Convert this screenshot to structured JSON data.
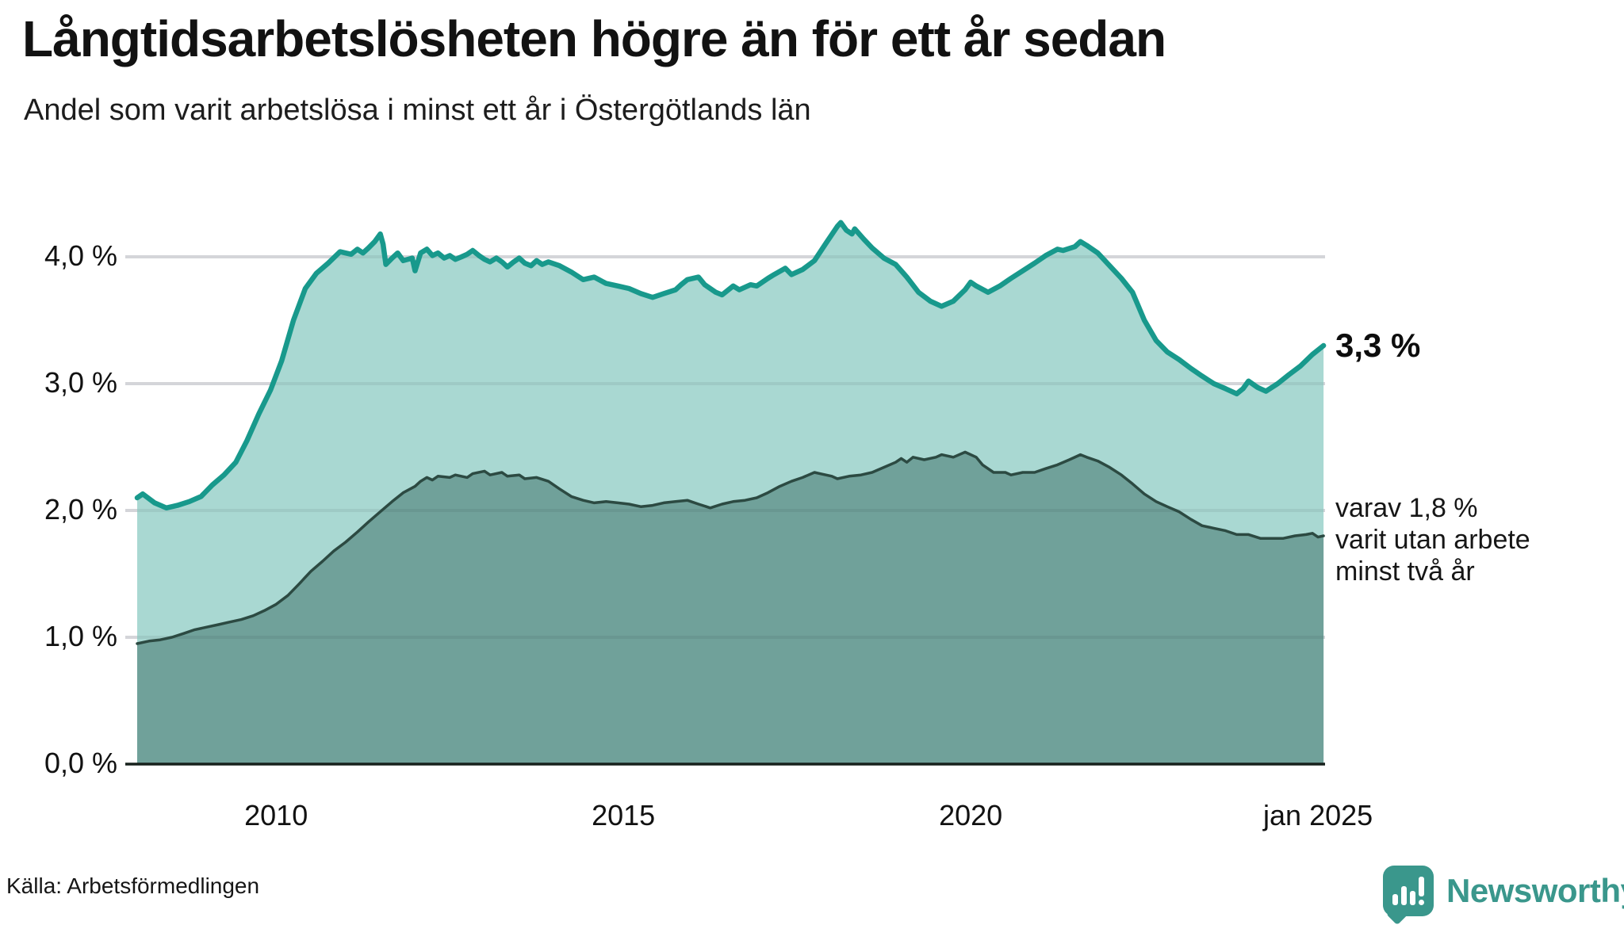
{
  "header": {
    "title": "Långtidsarbetslösheten högre än för ett år sedan",
    "subtitle": "Andel som varit arbetslösa i minst ett år i Östergötlands län"
  },
  "annotations": {
    "end_value_top": "3,3 %",
    "end_note_lines": [
      "varav 1,8 %",
      "varit utan arbete",
      "minst två år"
    ]
  },
  "footer": {
    "source": "Källa: Arbetsförmedlingen",
    "brand": "Newsworthy"
  },
  "colors": {
    "line_total": "#18998c",
    "fill_total": "#a9d8d2",
    "line_two_year": "#2c4a42",
    "fill_two_year": "#70a19a",
    "gridline": "#e3e3e8",
    "axis": "#17211c",
    "brand": "#3a978c"
  },
  "chart_data": {
    "type": "area",
    "title": "Långtidsarbetslösheten högre än för ett år sedan",
    "subtitle": "Andel som varit arbetslösa i minst ett år i Östergötlands län",
    "unit": "percent",
    "x_domain": [
      2008.0,
      2025.09
    ],
    "y_domain": [
      0,
      4.45
    ],
    "grid": true,
    "yticks": [
      {
        "label": "4,0 %",
        "value": 4
      },
      {
        "label": "3,0 %",
        "value": 3
      },
      {
        "label": "2,0 %",
        "value": 2
      },
      {
        "label": "1,0 %",
        "value": 1
      },
      {
        "label": "0,0 %",
        "value": 0
      }
    ],
    "xticks": [
      {
        "label": "2010",
        "value": 2010.0
      },
      {
        "label": "2015",
        "value": 2015.0
      },
      {
        "label": "2020",
        "value": 2020.0
      },
      {
        "label": "jan 2025",
        "value": 2025.0
      }
    ],
    "series": [
      {
        "name": "arbetslösa minst ett år",
        "end_label": "3,3 %",
        "end_value": 3.3,
        "points": [
          [
            2008.0,
            2.1
          ],
          [
            2008.08,
            2.13
          ],
          [
            2008.25,
            2.06
          ],
          [
            2008.42,
            2.02
          ],
          [
            2008.58,
            2.04
          ],
          [
            2008.75,
            2.07
          ],
          [
            2008.92,
            2.11
          ],
          [
            2009.08,
            2.2
          ],
          [
            2009.25,
            2.28
          ],
          [
            2009.42,
            2.38
          ],
          [
            2009.58,
            2.55
          ],
          [
            2009.75,
            2.76
          ],
          [
            2009.92,
            2.95
          ],
          [
            2010.08,
            3.18
          ],
          [
            2010.25,
            3.5
          ],
          [
            2010.42,
            3.75
          ],
          [
            2010.58,
            3.87
          ],
          [
            2010.75,
            3.95
          ],
          [
            2010.92,
            4.04
          ],
          [
            2011.08,
            4.02
          ],
          [
            2011.17,
            4.06
          ],
          [
            2011.25,
            4.03
          ],
          [
            2011.33,
            4.07
          ],
          [
            2011.42,
            4.12
          ],
          [
            2011.5,
            4.18
          ],
          [
            2011.54,
            4.1
          ],
          [
            2011.58,
            3.94
          ],
          [
            2011.67,
            3.99
          ],
          [
            2011.75,
            4.03
          ],
          [
            2011.83,
            3.97
          ],
          [
            2011.96,
            3.99
          ],
          [
            2012.0,
            3.89
          ],
          [
            2012.08,
            4.03
          ],
          [
            2012.17,
            4.06
          ],
          [
            2012.25,
            4.01
          ],
          [
            2012.33,
            4.03
          ],
          [
            2012.42,
            3.99
          ],
          [
            2012.5,
            4.01
          ],
          [
            2012.58,
            3.98
          ],
          [
            2012.67,
            4.0
          ],
          [
            2012.75,
            4.02
          ],
          [
            2012.83,
            4.05
          ],
          [
            2012.92,
            4.01
          ],
          [
            2013.0,
            3.98
          ],
          [
            2013.08,
            3.96
          ],
          [
            2013.17,
            3.99
          ],
          [
            2013.25,
            3.96
          ],
          [
            2013.33,
            3.92
          ],
          [
            2013.42,
            3.96
          ],
          [
            2013.5,
            3.99
          ],
          [
            2013.58,
            3.95
          ],
          [
            2013.67,
            3.93
          ],
          [
            2013.75,
            3.97
          ],
          [
            2013.83,
            3.94
          ],
          [
            2013.92,
            3.96
          ],
          [
            2014.08,
            3.93
          ],
          [
            2014.25,
            3.88
          ],
          [
            2014.42,
            3.82
          ],
          [
            2014.58,
            3.84
          ],
          [
            2014.75,
            3.79
          ],
          [
            2014.92,
            3.77
          ],
          [
            2015.08,
            3.75
          ],
          [
            2015.25,
            3.71
          ],
          [
            2015.42,
            3.68
          ],
          [
            2015.58,
            3.71
          ],
          [
            2015.75,
            3.74
          ],
          [
            2015.83,
            3.78
          ],
          [
            2015.92,
            3.82
          ],
          [
            2016.08,
            3.84
          ],
          [
            2016.17,
            3.78
          ],
          [
            2016.33,
            3.72
          ],
          [
            2016.42,
            3.7
          ],
          [
            2016.58,
            3.77
          ],
          [
            2016.67,
            3.74
          ],
          [
            2016.83,
            3.78
          ],
          [
            2016.92,
            3.77
          ],
          [
            2017.08,
            3.83
          ],
          [
            2017.17,
            3.86
          ],
          [
            2017.33,
            3.91
          ],
          [
            2017.42,
            3.86
          ],
          [
            2017.58,
            3.9
          ],
          [
            2017.75,
            3.97
          ],
          [
            2017.92,
            4.11
          ],
          [
            2018.08,
            4.24
          ],
          [
            2018.13,
            4.27
          ],
          [
            2018.21,
            4.21
          ],
          [
            2018.29,
            4.18
          ],
          [
            2018.33,
            4.22
          ],
          [
            2018.46,
            4.14
          ],
          [
            2018.58,
            4.07
          ],
          [
            2018.75,
            3.99
          ],
          [
            2018.92,
            3.94
          ],
          [
            2019.08,
            3.84
          ],
          [
            2019.25,
            3.72
          ],
          [
            2019.42,
            3.65
          ],
          [
            2019.58,
            3.61
          ],
          [
            2019.75,
            3.65
          ],
          [
            2019.92,
            3.74
          ],
          [
            2020.0,
            3.8
          ],
          [
            2020.08,
            3.77
          ],
          [
            2020.25,
            3.72
          ],
          [
            2020.42,
            3.77
          ],
          [
            2020.58,
            3.83
          ],
          [
            2020.75,
            3.89
          ],
          [
            2020.92,
            3.95
          ],
          [
            2021.08,
            4.01
          ],
          [
            2021.25,
            4.06
          ],
          [
            2021.33,
            4.05
          ],
          [
            2021.5,
            4.08
          ],
          [
            2021.58,
            4.12
          ],
          [
            2021.67,
            4.09
          ],
          [
            2021.83,
            4.03
          ],
          [
            2022.0,
            3.93
          ],
          [
            2022.17,
            3.83
          ],
          [
            2022.33,
            3.72
          ],
          [
            2022.5,
            3.5
          ],
          [
            2022.67,
            3.34
          ],
          [
            2022.83,
            3.25
          ],
          [
            2023.0,
            3.19
          ],
          [
            2023.17,
            3.12
          ],
          [
            2023.33,
            3.06
          ],
          [
            2023.5,
            3.0
          ],
          [
            2023.67,
            2.96
          ],
          [
            2023.83,
            2.92
          ],
          [
            2023.92,
            2.96
          ],
          [
            2024.0,
            3.02
          ],
          [
            2024.13,
            2.97
          ],
          [
            2024.25,
            2.94
          ],
          [
            2024.42,
            3.0
          ],
          [
            2024.58,
            3.07
          ],
          [
            2024.75,
            3.14
          ],
          [
            2024.92,
            3.23
          ],
          [
            2025.08,
            3.3
          ]
        ]
      },
      {
        "name": "varav utan arbete minst två år",
        "end_label": "varav 1,8 % varit utan arbete minst två år",
        "end_value": 1.8,
        "points": [
          [
            2008.0,
            0.95
          ],
          [
            2008.17,
            0.97
          ],
          [
            2008.33,
            0.98
          ],
          [
            2008.5,
            1.0
          ],
          [
            2008.67,
            1.03
          ],
          [
            2008.83,
            1.06
          ],
          [
            2009.0,
            1.08
          ],
          [
            2009.17,
            1.1
          ],
          [
            2009.33,
            1.12
          ],
          [
            2009.5,
            1.14
          ],
          [
            2009.67,
            1.17
          ],
          [
            2009.83,
            1.21
          ],
          [
            2010.0,
            1.26
          ],
          [
            2010.17,
            1.33
          ],
          [
            2010.33,
            1.42
          ],
          [
            2010.5,
            1.52
          ],
          [
            2010.67,
            1.6
          ],
          [
            2010.83,
            1.68
          ],
          [
            2011.0,
            1.75
          ],
          [
            2011.17,
            1.83
          ],
          [
            2011.33,
            1.91
          ],
          [
            2011.5,
            1.99
          ],
          [
            2011.67,
            2.07
          ],
          [
            2011.83,
            2.14
          ],
          [
            2012.0,
            2.19
          ],
          [
            2012.08,
            2.23
          ],
          [
            2012.17,
            2.26
          ],
          [
            2012.25,
            2.24
          ],
          [
            2012.33,
            2.27
          ],
          [
            2012.5,
            2.26
          ],
          [
            2012.58,
            2.28
          ],
          [
            2012.75,
            2.26
          ],
          [
            2012.83,
            2.29
          ],
          [
            2013.0,
            2.31
          ],
          [
            2013.08,
            2.28
          ],
          [
            2013.25,
            2.3
          ],
          [
            2013.33,
            2.27
          ],
          [
            2013.5,
            2.28
          ],
          [
            2013.58,
            2.25
          ],
          [
            2013.75,
            2.26
          ],
          [
            2013.92,
            2.23
          ],
          [
            2014.08,
            2.17
          ],
          [
            2014.25,
            2.11
          ],
          [
            2014.42,
            2.08
          ],
          [
            2014.58,
            2.06
          ],
          [
            2014.75,
            2.07
          ],
          [
            2014.92,
            2.06
          ],
          [
            2015.08,
            2.05
          ],
          [
            2015.25,
            2.03
          ],
          [
            2015.42,
            2.04
          ],
          [
            2015.58,
            2.06
          ],
          [
            2015.75,
            2.07
          ],
          [
            2015.92,
            2.08
          ],
          [
            2016.08,
            2.05
          ],
          [
            2016.25,
            2.02
          ],
          [
            2016.42,
            2.05
          ],
          [
            2016.58,
            2.07
          ],
          [
            2016.75,
            2.08
          ],
          [
            2016.92,
            2.1
          ],
          [
            2017.08,
            2.14
          ],
          [
            2017.25,
            2.19
          ],
          [
            2017.42,
            2.23
          ],
          [
            2017.58,
            2.26
          ],
          [
            2017.75,
            2.3
          ],
          [
            2017.83,
            2.29
          ],
          [
            2018.0,
            2.27
          ],
          [
            2018.08,
            2.25
          ],
          [
            2018.25,
            2.27
          ],
          [
            2018.42,
            2.28
          ],
          [
            2018.58,
            2.3
          ],
          [
            2018.75,
            2.34
          ],
          [
            2018.92,
            2.38
          ],
          [
            2019.0,
            2.41
          ],
          [
            2019.08,
            2.38
          ],
          [
            2019.17,
            2.42
          ],
          [
            2019.33,
            2.4
          ],
          [
            2019.5,
            2.42
          ],
          [
            2019.58,
            2.44
          ],
          [
            2019.75,
            2.42
          ],
          [
            2019.92,
            2.46
          ],
          [
            2020.08,
            2.42
          ],
          [
            2020.17,
            2.36
          ],
          [
            2020.33,
            2.3
          ],
          [
            2020.5,
            2.3
          ],
          [
            2020.58,
            2.28
          ],
          [
            2020.75,
            2.3
          ],
          [
            2020.92,
            2.3
          ],
          [
            2021.08,
            2.33
          ],
          [
            2021.25,
            2.36
          ],
          [
            2021.42,
            2.4
          ],
          [
            2021.58,
            2.44
          ],
          [
            2021.67,
            2.42
          ],
          [
            2021.83,
            2.39
          ],
          [
            2022.0,
            2.34
          ],
          [
            2022.17,
            2.28
          ],
          [
            2022.33,
            2.21
          ],
          [
            2022.5,
            2.13
          ],
          [
            2022.67,
            2.07
          ],
          [
            2022.83,
            2.03
          ],
          [
            2023.0,
            1.99
          ],
          [
            2023.17,
            1.93
          ],
          [
            2023.33,
            1.88
          ],
          [
            2023.5,
            1.86
          ],
          [
            2023.67,
            1.84
          ],
          [
            2023.83,
            1.81
          ],
          [
            2024.0,
            1.81
          ],
          [
            2024.17,
            1.78
          ],
          [
            2024.33,
            1.78
          ],
          [
            2024.5,
            1.78
          ],
          [
            2024.67,
            1.8
          ],
          [
            2024.83,
            1.81
          ],
          [
            2024.92,
            1.82
          ],
          [
            2025.0,
            1.79
          ],
          [
            2025.08,
            1.8
          ]
        ]
      }
    ]
  }
}
